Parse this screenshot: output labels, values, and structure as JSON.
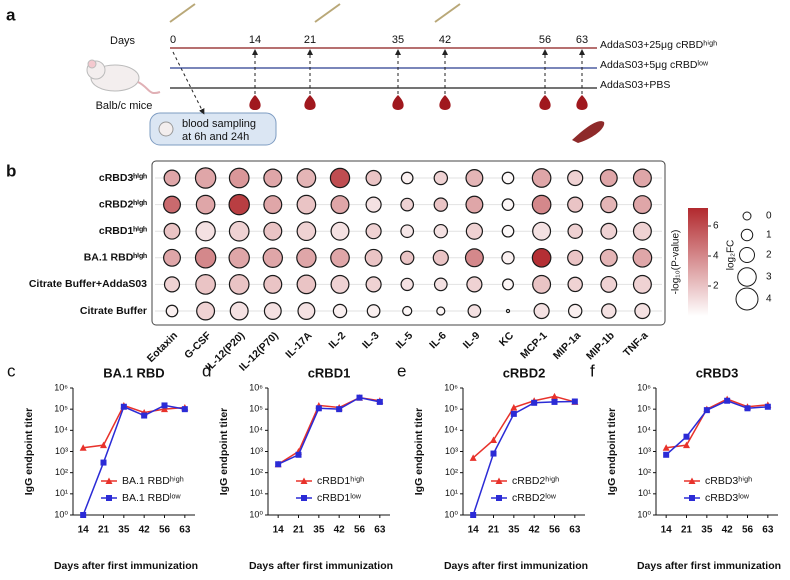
{
  "panel_a": {
    "label": "a",
    "days_label": "Days",
    "days": [
      "0",
      "14",
      "21",
      "35",
      "42",
      "56",
      "63"
    ],
    "groups": [
      "AddaS03+25μg cRBDʰⁱᵍʰ",
      "AddaS03+5μg cRBDˡᵒʷ",
      "AddaS03+PBS"
    ],
    "mouse_label": "Balb/c mice",
    "sampling": [
      "blood sampling",
      "at 6h and 24h"
    ]
  },
  "chart_data": [
    {
      "type": "dotplot",
      "panel": "b",
      "rows": [
        "cRBD3ʰⁱᵍʰ",
        "cRBD2ʰⁱᵍʰ",
        "cRBD1ʰⁱᵍʰ",
        "BA.1 RBDʰⁱᵍʰ",
        "Citrate Buffer+AddaS03",
        "Citrate Buffer"
      ],
      "columns": [
        "Eotaxin",
        "G-CSF",
        "IL-12(P20)",
        "IL-12(P70)",
        "IL-17A",
        "IL-2",
        "IL-3",
        "IL-5",
        "IL-6",
        "IL-9",
        "KC",
        "MCP-1",
        "MIP-1a",
        "MIP-1b",
        "TNF-a"
      ],
      "color_values": [
        [
          3,
          3,
          3.5,
          3,
          2.5,
          6,
          2,
          0.5,
          1.5,
          2.5,
          0.2,
          3,
          1.5,
          3,
          3
        ],
        [
          5,
          3,
          6.5,
          3,
          2,
          3,
          1,
          1.5,
          2,
          3,
          0.3,
          4,
          2,
          2.5,
          3
        ],
        [
          2,
          1,
          1.5,
          2,
          1.5,
          1,
          1.5,
          0.8,
          1,
          1.5,
          0.2,
          1,
          1.5,
          1.5,
          1.5
        ],
        [
          3,
          4,
          3,
          3,
          3,
          3,
          2,
          2,
          2,
          4,
          0.5,
          7,
          2,
          2.5,
          3
        ],
        [
          1.5,
          2,
          2,
          2,
          2,
          1.5,
          1.5,
          1,
          1,
          1.5,
          0.3,
          2,
          1.5,
          1.5,
          1.5
        ],
        [
          0.5,
          1.5,
          1,
          1,
          1,
          0.5,
          0.5,
          0.3,
          0.3,
          1,
          0,
          1,
          0.5,
          1,
          1
        ]
      ],
      "size_values": [
        [
          2.2,
          3.5,
          3.3,
          2.8,
          3,
          3.2,
          2,
          1,
          1.5,
          2.5,
          1,
          3,
          2,
          2.5,
          2.8
        ],
        [
          2.5,
          3,
          3.5,
          2.8,
          3,
          2.8,
          2,
          1.3,
          1.5,
          2.5,
          1,
          3,
          2,
          2.3,
          2.8
        ],
        [
          2.2,
          3.2,
          3.3,
          2.8,
          3,
          2.8,
          2,
          1.3,
          1.5,
          2.3,
          1,
          2.8,
          1.8,
          2.2,
          2.8
        ],
        [
          2.5,
          3.5,
          3.5,
          3.2,
          3.2,
          3,
          2.5,
          1.5,
          2,
          2.8,
          1.2,
          3,
          2,
          2.5,
          3
        ],
        [
          2,
          3.3,
          3.3,
          2.8,
          3,
          2.8,
          2,
          1.2,
          1.3,
          2,
          0.8,
          2.8,
          1.8,
          2.2,
          2.8
        ],
        [
          1,
          2.8,
          2.8,
          2.5,
          2.5,
          1.5,
          1.3,
          0.3,
          0,
          1.3,
          -1.4,
          2,
          1.5,
          1.8,
          2
        ]
      ],
      "color_label": "-log₁₀(P-value)",
      "color_lim": [
        0,
        7.2
      ],
      "color_ticks": [
        2,
        4,
        6
      ],
      "color": "#b2292e",
      "size_label": "log₂FC",
      "size_ticks": [
        0,
        1,
        2,
        3,
        4
      ]
    },
    {
      "type": "line",
      "panel": "c",
      "title": "BA.1 RBD",
      "categories": [
        "14",
        "21",
        "35",
        "42",
        "56",
        "63"
      ],
      "series": [
        {
          "name": "BA.1 RBDʰⁱᵍʰ",
          "color": "#e8322b",
          "values": [
            1500,
            2000,
            150000,
            70000,
            100000,
            120000
          ]
        },
        {
          "name": "BA.1 RBDˡᵒʷ",
          "color": "#2b2bd6",
          "values": [
            1,
            300,
            130000,
            50000,
            150000,
            100000
          ]
        }
      ],
      "ylim": [
        1,
        1000000
      ],
      "log": true,
      "yticks": [
        {
          "value": 1,
          "label": "10⁰"
        },
        {
          "value": 10,
          "label": "10¹"
        },
        {
          "value": 100,
          "label": "10²"
        },
        {
          "value": 1000,
          "label": "10³"
        },
        {
          "value": 10000,
          "label": "10⁴"
        },
        {
          "value": 100000,
          "label": "10⁵"
        },
        {
          "value": 1000000,
          "label": "10⁶"
        }
      ],
      "xlabel": "Days after first immunization",
      "ylabel": "IgG endpoint titer"
    },
    {
      "type": "line",
      "panel": "d",
      "title": "cRBD1",
      "categories": [
        "14",
        "21",
        "35",
        "42",
        "56",
        "63"
      ],
      "series": [
        {
          "name": "cRBD1ʰⁱᵍʰ",
          "color": "#e8322b",
          "values": [
            250,
            1000,
            150000,
            120000,
            350000,
            250000
          ]
        },
        {
          "name": "cRBD1ˡᵒʷ",
          "color": "#2b2bd6",
          "values": [
            250,
            700,
            110000,
            100000,
            350000,
            220000
          ]
        }
      ],
      "ylim": [
        1,
        1000000
      ],
      "log": true,
      "yticks": [
        {
          "value": 1,
          "label": "10⁰"
        },
        {
          "value": 10,
          "label": "10¹"
        },
        {
          "value": 100,
          "label": "10²"
        },
        {
          "value": 1000,
          "label": "10³"
        },
        {
          "value": 10000,
          "label": "10⁴"
        },
        {
          "value": 100000,
          "label": "10⁵"
        },
        {
          "value": 1000000,
          "label": "10⁶"
        }
      ],
      "xlabel": "Days after first immunization",
      "ylabel": "IgG endpoint titer"
    },
    {
      "type": "line",
      "panel": "e",
      "title": "cRBD2",
      "categories": [
        "14",
        "21",
        "35",
        "42",
        "56",
        "63"
      ],
      "series": [
        {
          "name": "cRBD2ʰⁱᵍʰ",
          "color": "#e8322b",
          "values": [
            500,
            3500,
            120000,
            250000,
            400000,
            220000
          ]
        },
        {
          "name": "cRBD2ˡᵒʷ",
          "color": "#2b2bd6",
          "values": [
            1,
            800,
            60000,
            200000,
            220000,
            230000
          ]
        }
      ],
      "ylim": [
        1,
        1000000
      ],
      "log": true,
      "yticks": [
        {
          "value": 1,
          "label": "10⁰"
        },
        {
          "value": 10,
          "label": "10¹"
        },
        {
          "value": 100,
          "label": "10²"
        },
        {
          "value": 1000,
          "label": "10³"
        },
        {
          "value": 10000,
          "label": "10⁴"
        },
        {
          "value": 100000,
          "label": "10⁵"
        },
        {
          "value": 1000000,
          "label": "10⁶"
        }
      ],
      "xlabel": "Days after first immunization",
      "ylabel": "IgG endpoint titer"
    },
    {
      "type": "line",
      "panel": "f",
      "title": "cRBD3",
      "categories": [
        "14",
        "21",
        "35",
        "42",
        "56",
        "63"
      ],
      "series": [
        {
          "name": "cRBD3ʰⁱᵍʰ",
          "color": "#e8322b",
          "values": [
            1500,
            2000,
            100000,
            300000,
            130000,
            160000
          ]
        },
        {
          "name": "cRBD3ˡᵒʷ",
          "color": "#2b2bd6",
          "values": [
            700,
            5000,
            90000,
            250000,
            110000,
            130000
          ]
        }
      ],
      "ylim": [
        1,
        1000000
      ],
      "log": true,
      "yticks": [
        {
          "value": 1,
          "label": "10⁰"
        },
        {
          "value": 10,
          "label": "10¹"
        },
        {
          "value": 100,
          "label": "10²"
        },
        {
          "value": 1000,
          "label": "10³"
        },
        {
          "value": 10000,
          "label": "10⁴"
        },
        {
          "value": 100000,
          "label": "10⁵"
        },
        {
          "value": 1000000,
          "label": "10⁶"
        }
      ],
      "xlabel": "Days after first immunization",
      "ylabel": "IgG endpoint titer"
    }
  ]
}
